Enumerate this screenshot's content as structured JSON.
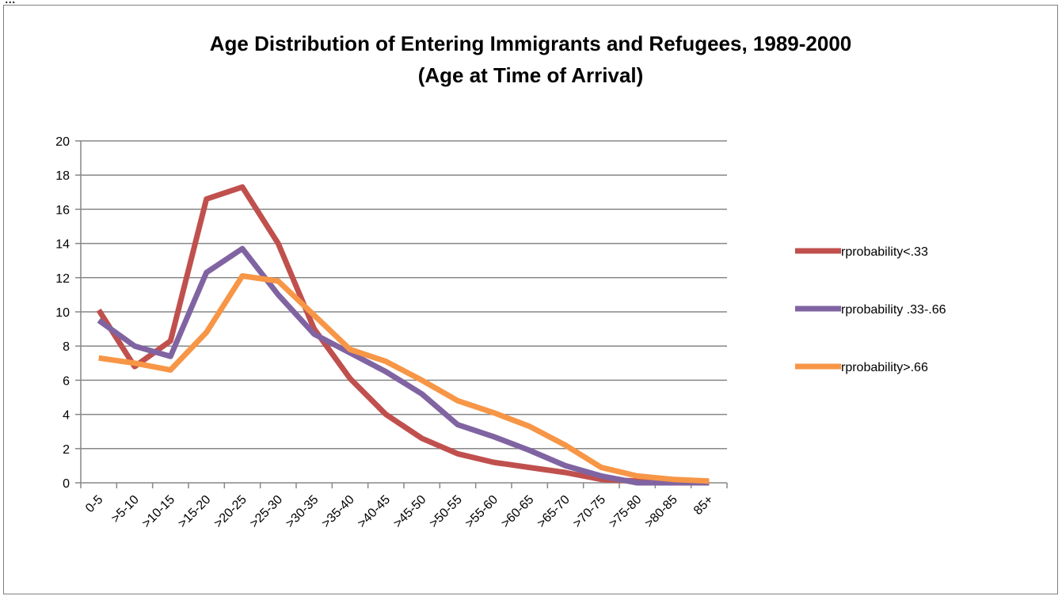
{
  "page_fragment": "...",
  "chart_data": {
    "type": "line",
    "title_lines": [
      "Age Distribution of Entering Immigrants and Refugees, 1989-2000",
      "(Age at Time of Arrival)"
    ],
    "xlabel": "",
    "ylabel": "",
    "categories": [
      "0-5",
      ">5-10",
      ">10-15",
      ">15-20",
      ">20-25",
      ">25-30",
      ">30-35",
      ">35-40",
      ">40-45",
      ">45-50",
      ">50-55",
      ">55-60",
      ">60-65",
      ">65-70",
      ">70-75",
      ">75-80",
      ">80-85",
      "85+"
    ],
    "yticks": [
      "0",
      "2",
      "4",
      "6",
      "8",
      "10",
      "12",
      "14",
      "16",
      "18",
      "20"
    ],
    "ylim": [
      0,
      20
    ],
    "grid": true,
    "legend_position": "right",
    "series": [
      {
        "name": "rprobability<.33",
        "color": "#c0504d",
        "values": [
          10.1,
          6.8,
          8.3,
          16.6,
          17.3,
          14.0,
          9.0,
          6.1,
          4.0,
          2.6,
          1.7,
          1.2,
          0.9,
          0.6,
          0.2,
          0.1,
          0.0,
          0.0
        ]
      },
      {
        "name": "rprobability .33-.66",
        "color": "#8064a2",
        "values": [
          9.5,
          8.0,
          7.4,
          12.3,
          13.7,
          11.0,
          8.7,
          7.6,
          6.5,
          5.2,
          3.4,
          2.7,
          1.9,
          1.0,
          0.4,
          0.0,
          0.0,
          0.0
        ]
      },
      {
        "name": "rprobability>.66",
        "color": "#f79646",
        "values": [
          7.3,
          7.0,
          6.6,
          8.8,
          12.1,
          11.8,
          9.8,
          7.8,
          7.1,
          6.0,
          4.8,
          4.1,
          3.3,
          2.2,
          0.9,
          0.4,
          0.2,
          0.1
        ]
      }
    ]
  }
}
